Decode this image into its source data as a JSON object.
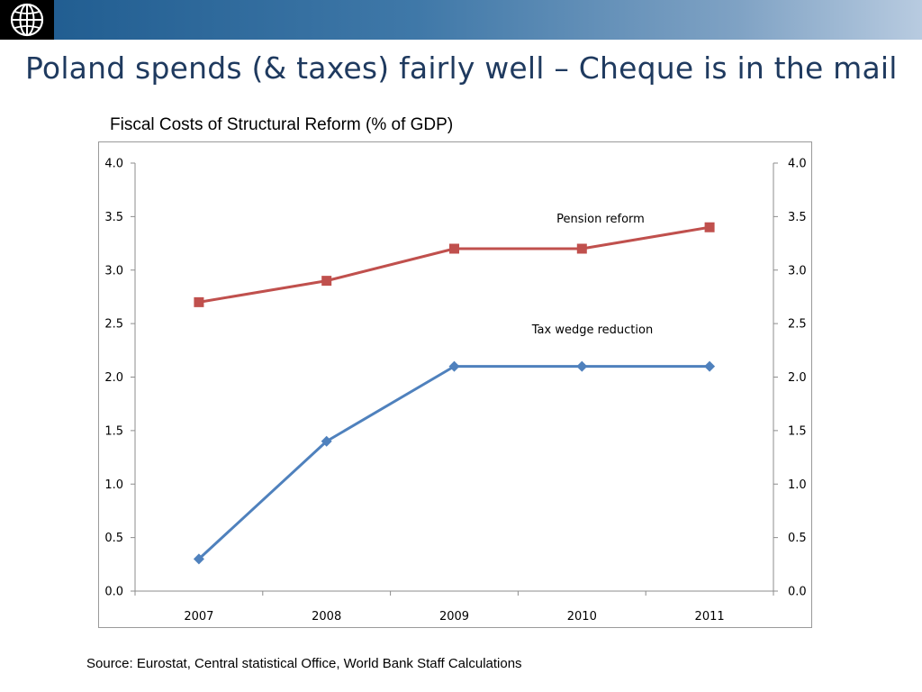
{
  "slide": {
    "title": "Poland spends (& taxes) fairly well – Cheque is in the mail",
    "source": "Source: Eurostat, Central statistical Office, World Bank Staff Calculations",
    "logo": "world-bank-globe-icon"
  },
  "colors": {
    "banner_start": "#1d5a8e",
    "banner_end": "#b8cbe0",
    "title": "#1f3a5f",
    "pension_series": "#c0504d",
    "tax_series": "#4f81bd"
  },
  "chart_data": {
    "type": "line",
    "title": "Fiscal Costs of Structural Reform (% of GDP)",
    "x": [
      "2007",
      "2008",
      "2009",
      "2010",
      "2011"
    ],
    "ylim": [
      0,
      4
    ],
    "yticks": [
      "0.0",
      "0.5",
      "1.0",
      "1.5",
      "2.0",
      "2.5",
      "3.0",
      "3.5",
      "4.0"
    ],
    "secondary_axis": true,
    "grid": false,
    "series": [
      {
        "name": "Pension reform",
        "values": [
          2.7,
          2.9,
          3.2,
          3.2,
          3.4
        ],
        "color": "#c0504d",
        "marker": "square"
      },
      {
        "name": "Tax wedge reduction",
        "values": [
          0.3,
          1.4,
          2.1,
          2.1,
          2.1
        ],
        "color": "#4f81bd",
        "marker": "diamond"
      }
    ]
  }
}
